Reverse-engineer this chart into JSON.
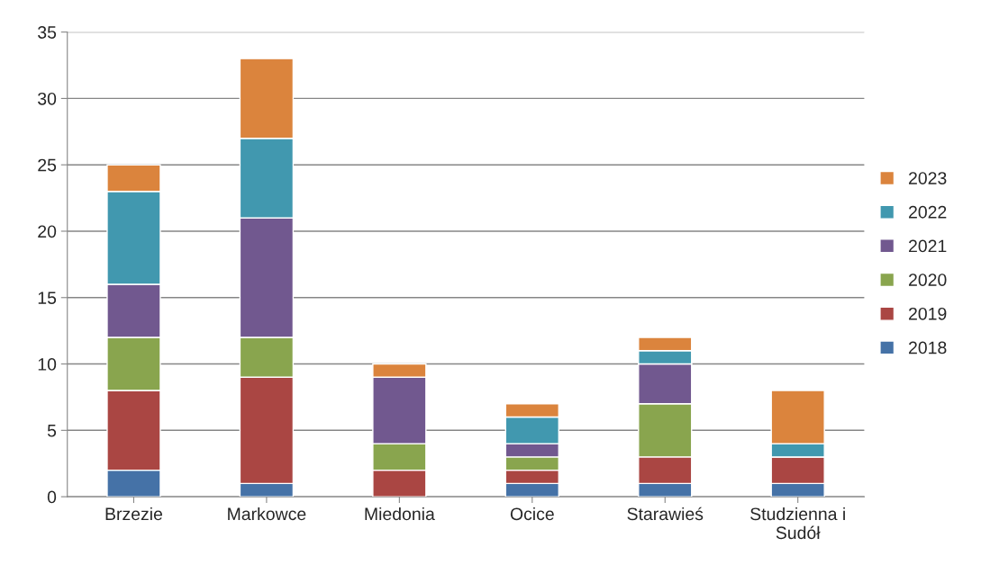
{
  "chart_data": {
    "type": "bar",
    "stacked": true,
    "categories": [
      "Brzezie",
      "Markowce",
      "Miedonia",
      "Ocice",
      "Starawieś",
      "Studzienna i Sudół"
    ],
    "series": [
      {
        "name": "2018",
        "color": "#4572a7",
        "values": [
          2,
          1,
          0,
          1,
          1,
          1
        ]
      },
      {
        "name": "2019",
        "color": "#aa4643",
        "values": [
          6,
          8,
          2,
          1,
          2,
          2
        ]
      },
      {
        "name": "2020",
        "color": "#89a54e",
        "values": [
          4,
          3,
          2,
          1,
          4,
          0
        ]
      },
      {
        "name": "2021",
        "color": "#71588f",
        "values": [
          4,
          9,
          5,
          1,
          3,
          0
        ]
      },
      {
        "name": "2022",
        "color": "#4198af",
        "values": [
          7,
          6,
          0,
          2,
          1,
          1
        ]
      },
      {
        "name": "2023",
        "color": "#db843d",
        "values": [
          2,
          6,
          1,
          1,
          1,
          4
        ]
      }
    ],
    "ylim": [
      0,
      35
    ],
    "yticks": [
      0,
      5,
      10,
      15,
      20,
      25,
      30,
      35
    ],
    "grid": "y",
    "legend": "right"
  }
}
